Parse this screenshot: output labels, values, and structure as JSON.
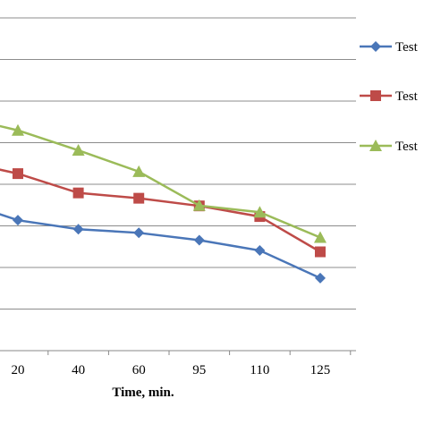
{
  "chart_data": {
    "type": "line",
    "title": "",
    "xlabel": "Time, min.",
    "ylabel": "",
    "categories": [
      "20",
      "40",
      "60",
      "95",
      "110",
      "125"
    ],
    "series": [
      {
        "name": "Test",
        "color": "#4a76b8",
        "marker": "diamond",
        "values": [
          0.392,
          0.365,
          0.354,
          0.332,
          0.301,
          0.218
        ]
      },
      {
        "name": "Test",
        "color": "#be4b48",
        "marker": "square",
        "values": [
          0.532,
          0.474,
          0.458,
          0.435,
          0.403,
          0.297
        ]
      },
      {
        "name": "Test",
        "color": "#9bbb59",
        "marker": "triangle",
        "values": [
          0.662,
          0.602,
          0.538,
          0.436,
          0.416,
          0.34
        ]
      }
    ],
    "ylim": [
      0,
      1
    ],
    "grid": true,
    "legend_position": "right"
  }
}
